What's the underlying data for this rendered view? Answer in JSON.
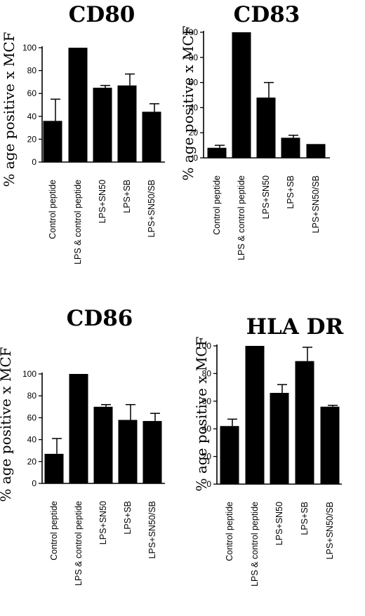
{
  "chart_data": [
    {
      "type": "bar",
      "title": "CD80",
      "ylabel": "% age positive x MCF",
      "categories": [
        "Control peptide",
        "LPS & control peptide",
        "LPS+SN50",
        "LPS+SB",
        "LPS+SN50/SB"
      ],
      "values": [
        36,
        100,
        65,
        67,
        44
      ],
      "errors": [
        19,
        0,
        2,
        10,
        7
      ],
      "ylim": [
        0,
        100
      ],
      "yticks": [
        "0",
        "20",
        "40",
        "60",
        "80",
        "100"
      ],
      "grid": false
    },
    {
      "type": "bar",
      "title": "CD83",
      "ylabel": "% age positive x MCF",
      "categories": [
        "Control peptide",
        "LPS & control peptide",
        "LPS+SN50",
        "LPS+SB",
        "LPS+SN50/SB"
      ],
      "values": [
        8,
        100,
        48,
        16,
        11
      ],
      "errors": [
        2,
        0,
        12,
        2,
        0
      ],
      "ylim": [
        0,
        100
      ],
      "yticks": [
        "0",
        "20",
        "40",
        "60",
        "80",
        "100"
      ],
      "grid": false
    },
    {
      "type": "bar",
      "title": "CD86",
      "ylabel": "% age positive x MCF",
      "categories": [
        "Control peptide",
        "LPS & control peptide",
        "LPS+SN50",
        "LPS+SB",
        "LPS+SN50/SB"
      ],
      "values": [
        27,
        100,
        70,
        58,
        57
      ],
      "errors": [
        14,
        0,
        2,
        14,
        7
      ],
      "ylim": [
        0,
        100
      ],
      "yticks": [
        "0",
        "20",
        "40",
        "60",
        "80",
        "100"
      ],
      "grid": false
    },
    {
      "type": "bar",
      "title": "HLA DR",
      "ylabel": "% age positive x MCF",
      "categories": [
        "Control peptide",
        "LPS & control peptide",
        "LPS+SN50",
        "LPS+SB",
        "LPS+SN50/SB"
      ],
      "values": [
        42,
        100,
        66,
        89,
        56
      ],
      "errors": [
        5,
        0,
        6,
        10,
        1
      ],
      "ylim": [
        0,
        100
      ],
      "yticks": [
        "0",
        "20",
        "40",
        "60",
        "80",
        "100"
      ],
      "grid": false
    }
  ]
}
